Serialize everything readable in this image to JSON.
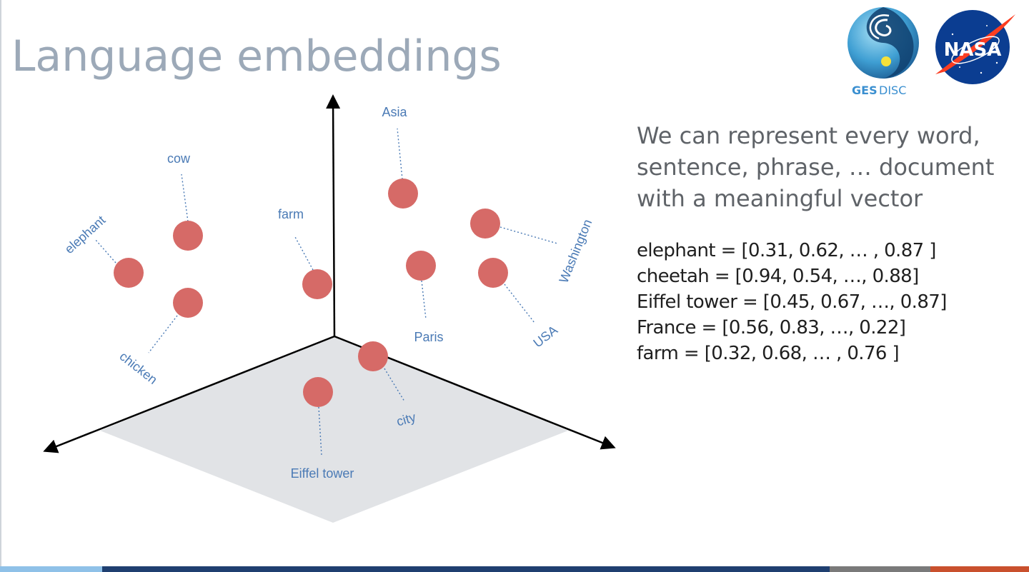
{
  "slide": {
    "title": "Language embeddings"
  },
  "logos": {
    "gesdisc_label_part1": "GES",
    "gesdisc_label_part2": "DISC",
    "nasa_label": "NASA"
  },
  "heading_lines": [
    "We can  represent every word,",
    "sentence, phrase, … document",
    "with a meaningful vector"
  ],
  "vectors": [
    "elephant = [0.31, 0.62, … , 0.87 ]",
    "cheetah = [0.94, 0.54, …, 0.88]",
    "Eiffel tower = [0.45, 0.67, …, 0.87]",
    "France = [0.56, 0.83, …, 0.22]",
    "farm = [0.32, 0.68, … , 0.76 ]"
  ],
  "diagram": {
    "point_labels": {
      "asia": "Asia",
      "cow": "cow",
      "elephant": "elephant",
      "farm": "farm",
      "washington": "Washington",
      "paris": "Paris",
      "usa": "USA",
      "chicken": "chicken",
      "city": "city",
      "eiffel_tower": "Eiffel tower"
    }
  },
  "colors": {
    "point": "#d66a67",
    "label": "#4a7ab5",
    "plane": "#e1e3e6",
    "axis": "#000000",
    "title": "#9ca9b8",
    "footer": [
      "#8fc1e8",
      "#1f3f70",
      "#7a7a7a",
      "#c9502d"
    ]
  }
}
